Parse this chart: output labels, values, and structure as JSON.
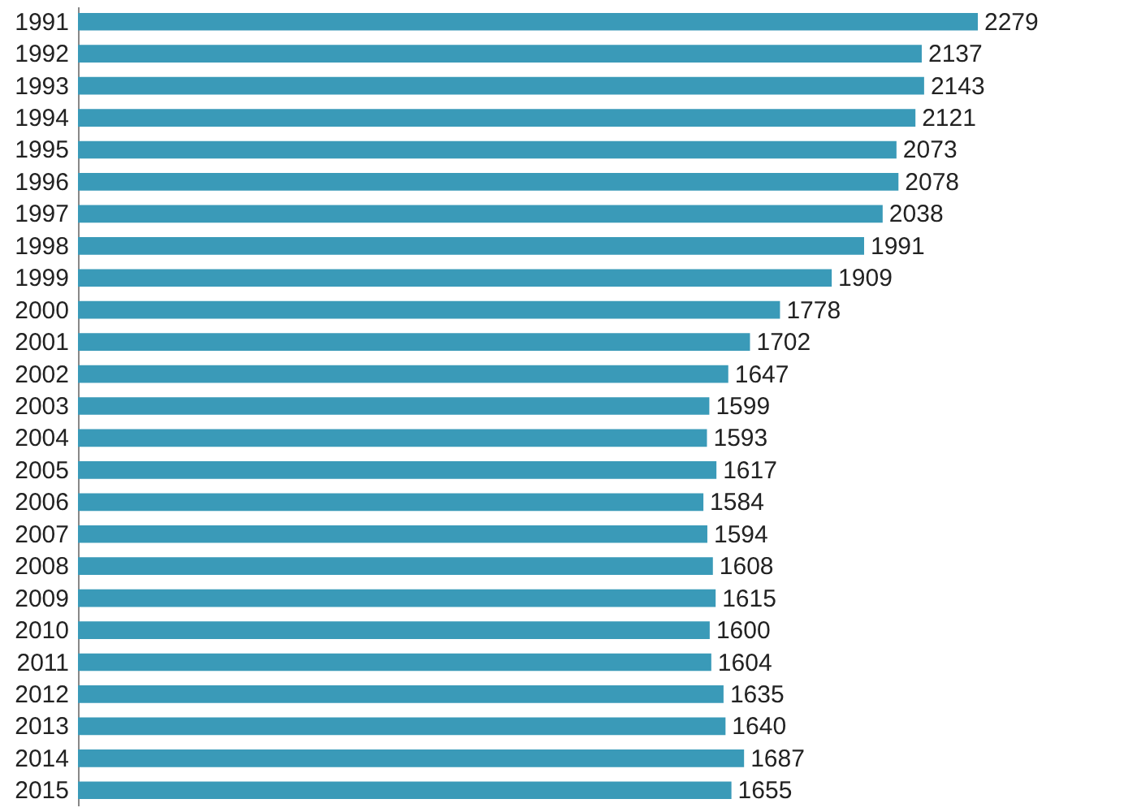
{
  "chart_data": {
    "type": "bar",
    "orientation": "horizontal",
    "data_labels": true,
    "categories": [
      "1991",
      "1992",
      "1993",
      "1994",
      "1995",
      "1996",
      "1997",
      "1998",
      "1999",
      "2000",
      "2001",
      "2002",
      "2003",
      "2004",
      "2005",
      "2006",
      "2007",
      "2008",
      "2009",
      "2010",
      "2011",
      "2012",
      "2013",
      "2014",
      "2015"
    ],
    "values": [
      2279,
      2137,
      2143,
      2121,
      2073,
      2078,
      2038,
      1991,
      1909,
      1778,
      1702,
      1647,
      1599,
      1593,
      1617,
      1584,
      1594,
      1608,
      1615,
      1600,
      1604,
      1635,
      1640,
      1687,
      1655
    ],
    "color": "#3a9ab8"
  }
}
